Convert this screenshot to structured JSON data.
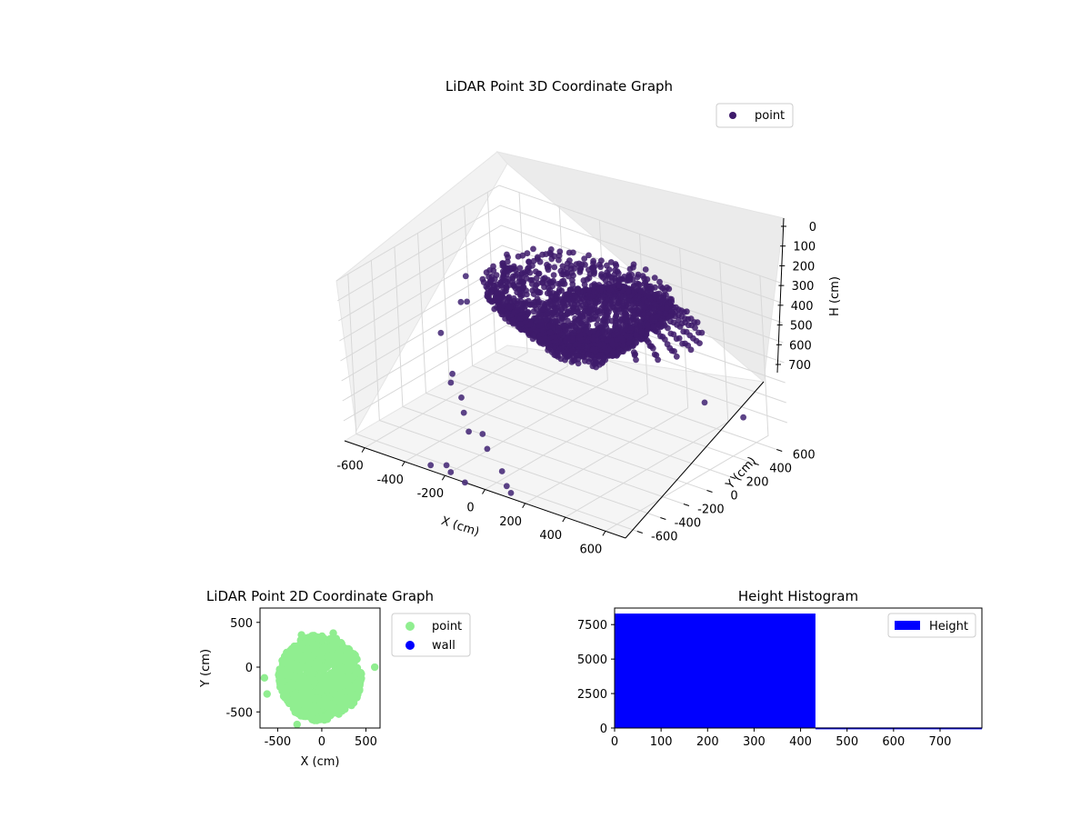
{
  "figure": {
    "background": "#ffffff"
  },
  "chart_data": [
    {
      "type": "scatter",
      "projection": "3d",
      "title": "LiDAR Point 3D Coordinate Graph",
      "xlabel": "X (cm)",
      "ylabel": "Y (cm)",
      "zlabel": "H (cm)",
      "xlim": [
        -700,
        700
      ],
      "ylim": [
        -700,
        700
      ],
      "zlim": [
        0,
        800
      ],
      "z_inverted": true,
      "x_ticks": [
        "-600",
        "-400",
        "-200",
        "0",
        "200",
        "400",
        "600"
      ],
      "y_ticks": [
        "-600",
        "-400",
        "-200",
        "0",
        "200",
        "400",
        "600"
      ],
      "z_ticks": [
        "0",
        "100",
        "200",
        "300",
        "400",
        "500",
        "600",
        "700"
      ],
      "grid": true,
      "legend": {
        "placement": "upper-right",
        "entries": [
          "point"
        ]
      },
      "series": [
        {
          "name": "point",
          "color": "#3e1b6b",
          "description": "dense dome-like ring of points centered near origin, mostly within radius ~400 cm, heights 0-450 cm, with sparse outliers to ~650 cm radius and heights ~700-800 cm"
        }
      ],
      "outliers": [
        {
          "x": -650,
          "y": 300,
          "h": 300
        },
        {
          "x": -620,
          "y": 250,
          "h": 400
        },
        {
          "x": -700,
          "y": 150,
          "h": 550
        },
        {
          "x": -560,
          "y": 100,
          "h": 330
        },
        {
          "x": -500,
          "y": -100,
          "h": 600
        },
        {
          "x": -480,
          "y": -150,
          "h": 620
        },
        {
          "x": -400,
          "y": -200,
          "h": 650
        },
        {
          "x": -300,
          "y": -350,
          "h": 640
        },
        {
          "x": -250,
          "y": -400,
          "h": 700
        },
        {
          "x": -150,
          "y": -450,
          "h": 660
        },
        {
          "x": -100,
          "y": -500,
          "h": 700
        },
        {
          "x": 0,
          "y": -550,
          "h": 760
        },
        {
          "x": -250,
          "y": -600,
          "h": 800
        },
        {
          "x": -200,
          "y": -650,
          "h": 800
        },
        {
          "x": -100,
          "y": -700,
          "h": 800
        },
        {
          "x": -300,
          "y": -650,
          "h": 800
        },
        {
          "x": 50,
          "y": -600,
          "h": 800
        },
        {
          "x": 100,
          "y": -650,
          "h": 800
        },
        {
          "x": 600,
          "y": 500,
          "h": 640
        },
        {
          "x": 620,
          "y": 150,
          "h": 440
        }
      ]
    },
    {
      "type": "scatter",
      "title": "LiDAR Point 2D Coordinate Graph",
      "xlabel": "X (cm)",
      "ylabel": "Y (cm)",
      "xlim": [
        -700,
        660
      ],
      "ylim": [
        -680,
        660
      ],
      "x_ticks": [
        "-500",
        "0",
        "500"
      ],
      "y_ticks": [
        "-500",
        "0",
        "500"
      ],
      "legend": {
        "placement": "outside-right",
        "entries": [
          "point",
          "wall"
        ]
      },
      "series": [
        {
          "name": "point",
          "color": "#90ee90",
          "description": "blob of points roughly -500..500 in x and -650..380 in y"
        },
        {
          "name": "wall",
          "color": "#0000ff",
          "points": []
        }
      ]
    },
    {
      "type": "bar",
      "chart_subtype": "histogram",
      "title": "Height Histogram",
      "xlim": [
        0,
        790
      ],
      "ylim": [
        0,
        8700
      ],
      "x_ticks": [
        "0",
        "100",
        "200",
        "300",
        "400",
        "500",
        "600",
        "700"
      ],
      "y_ticks": [
        "0",
        "2500",
        "5000",
        "7500"
      ],
      "legend": {
        "placement": "upper-right",
        "entries": [
          "Height"
        ]
      },
      "series": [
        {
          "name": "Height",
          "color": "#0000ff",
          "bins": [
            [
              0,
              432,
              8300
            ],
            [
              432,
              790,
              40
            ]
          ]
        }
      ]
    }
  ]
}
